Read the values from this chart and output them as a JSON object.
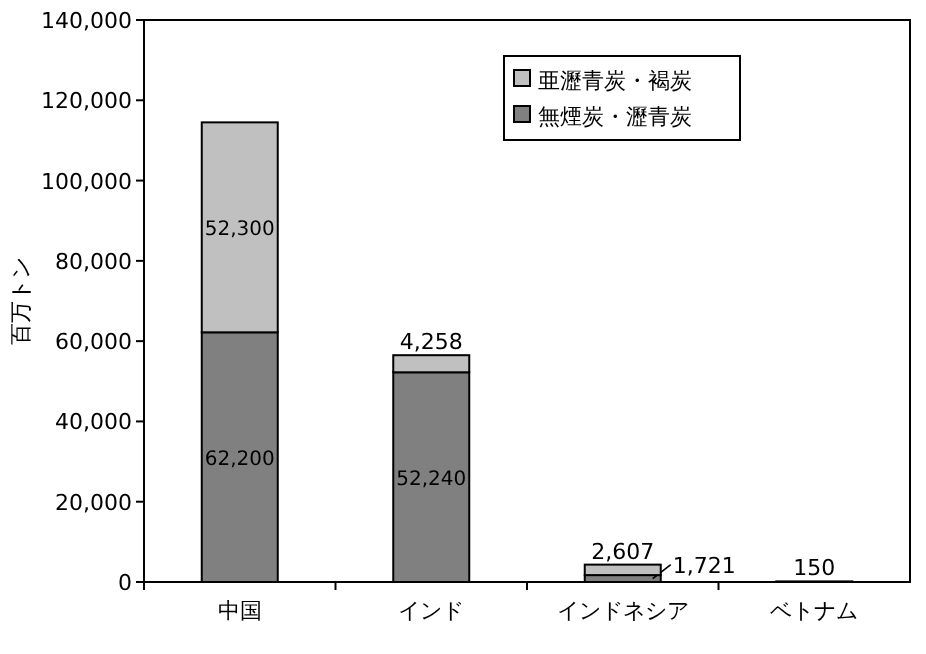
{
  "chart_data": {
    "type": "bar",
    "stacked": true,
    "ylabel": "百万トン",
    "categories": [
      "中国",
      "インド",
      "インドネシア",
      "ベトナム"
    ],
    "series": [
      {
        "name": "無煙炭・瀝青炭",
        "color": "#808080",
        "values": [
          62200,
          52240,
          1721,
          150
        ],
        "value_labels": [
          "62,200",
          "52,240",
          "1,721",
          "150"
        ]
      },
      {
        "name": "亜瀝青炭・褐炭",
        "color": "#c0c0c0",
        "values": [
          52300,
          4258,
          2607,
          null
        ],
        "value_labels": [
          "52,300",
          "4,258",
          "2,607",
          null
        ]
      }
    ],
    "ylim": [
      0,
      140000
    ],
    "yticks": [
      0,
      {
        "value": 20000,
        "label": "20,000"
      },
      {
        "value": 40000,
        "label": "40,000"
      },
      {
        "value": 60000,
        "label": "60,000"
      },
      {
        "value": 80000,
        "label": "80,000"
      },
      {
        "value": 100000,
        "label": "100,000"
      },
      {
        "value": 120000,
        "label": "120,000"
      },
      {
        "value": 140000,
        "label": "140,000"
      }
    ],
    "grid": false,
    "legend": "top right"
  }
}
